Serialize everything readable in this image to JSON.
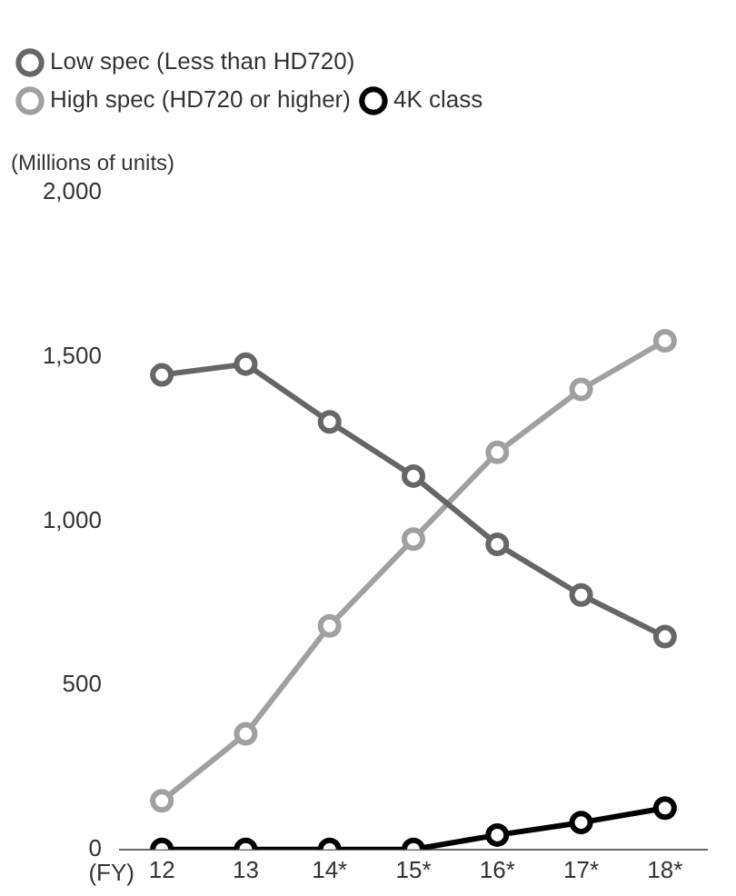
{
  "chart_data": {
    "type": "line",
    "xlabel": "(FY)",
    "ylabel": "(Millions of units)",
    "categories": [
      "12",
      "13",
      "14*",
      "15*",
      "16*",
      "17*",
      "18*"
    ],
    "series": [
      {
        "name": "Low spec (Less than HD720)",
        "color": "#666666",
        "values": [
          1445,
          1478,
          1302,
          1137,
          929,
          775,
          648
        ]
      },
      {
        "name": "High spec (HD720 or higher)",
        "color": "#a0a0a0",
        "values": [
          148,
          352,
          681,
          945,
          1209,
          1401,
          1549
        ]
      },
      {
        "name": "4K class",
        "color": "#000000",
        "values": [
          0,
          0,
          0,
          0,
          44,
          82,
          126
        ]
      }
    ],
    "ylim": [
      0,
      2000
    ],
    "yticks": [
      0,
      500,
      {
        "value": 1000,
        "label": "1,000"
      },
      {
        "value": 1500,
        "label": "1,500"
      },
      {
        "value": 2000,
        "label": "2,000"
      }
    ],
    "grid": false,
    "legend": "top left",
    "marker": "circle",
    "line_style": "solid"
  }
}
